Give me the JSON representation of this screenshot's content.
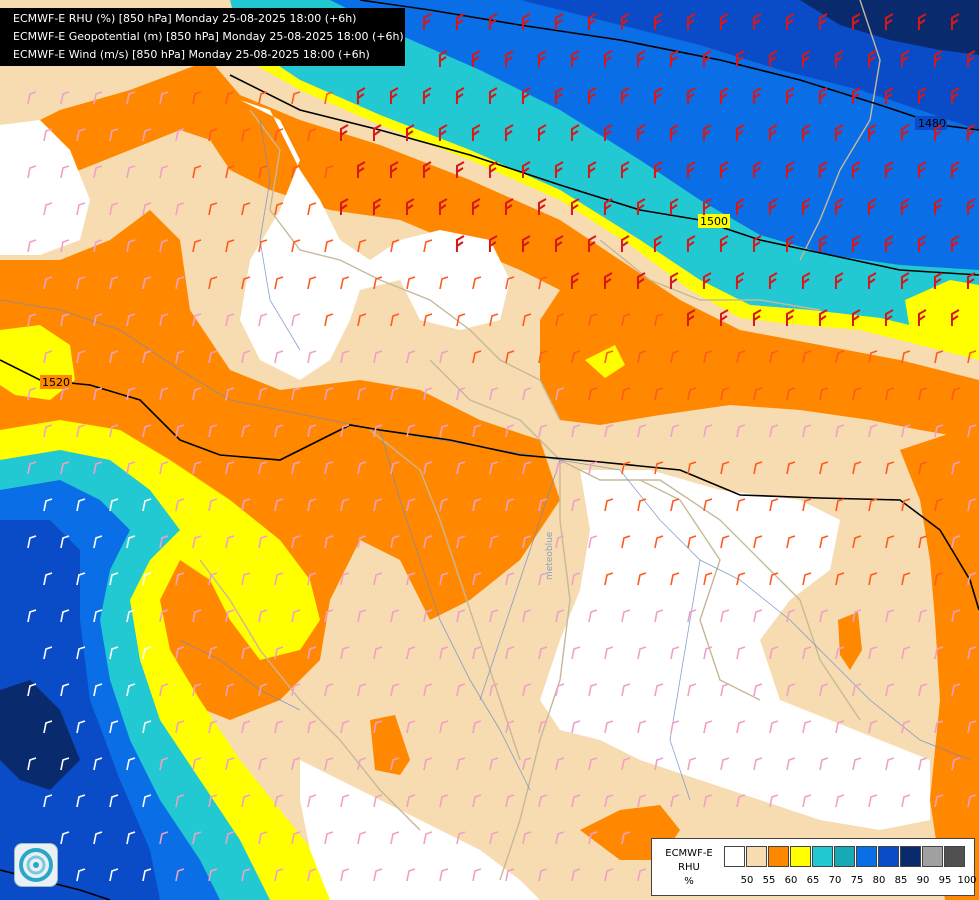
{
  "header": {
    "lines": [
      "ECMWF-E RHU (%) [850 hPa] Monday 25-08-2025 18:00 (+6h)",
      "ECMWF-E Geopotential (m) [850 hPa] Monday 25-08-2025 18:00 (+6h)",
      "ECMWF-E Wind (m/s) [850 hPa] Monday 25-08-2025 18:00 (+6h)"
    ]
  },
  "contours": {
    "labels": [
      "1480",
      "1500",
      "1520",
      "1520"
    ]
  },
  "map_text": {
    "watermark": "meteoblue"
  },
  "legend": {
    "title_lines": [
      "ECMWF-E",
      "RHU",
      "%"
    ],
    "ticks": [
      "50",
      "55",
      "60",
      "65",
      "70",
      "75",
      "80",
      "85",
      "90",
      "95",
      "100"
    ],
    "colors": [
      "#ffffff",
      "#f6dcb0",
      "#ff8800",
      "#ffff00",
      "#22c8d2",
      "#18aab4",
      "#0a6ee6",
      "#0a4cc8",
      "#0a2a6e",
      "#a0a0a0",
      "#505050"
    ]
  },
  "colors": {
    "rhu_50": "#ffffff",
    "rhu_55": "#f6dcb0",
    "rhu_60": "#ff8800",
    "rhu_65": "#ffff00",
    "rhu_70": "#22c8d2",
    "rhu_75": "#18aab4",
    "rhu_80": "#0a6ee6",
    "rhu_85": "#0a4cc8",
    "rhu_90": "#0a2a6e",
    "wind_strong": "#d81818",
    "wind_moderate": "#ff5a1e",
    "wind_light": "#f0a0c8",
    "wind_calm": "#ffffff",
    "border": "#c8b89a",
    "river": "#6a8ac8",
    "contour": "#000000"
  }
}
